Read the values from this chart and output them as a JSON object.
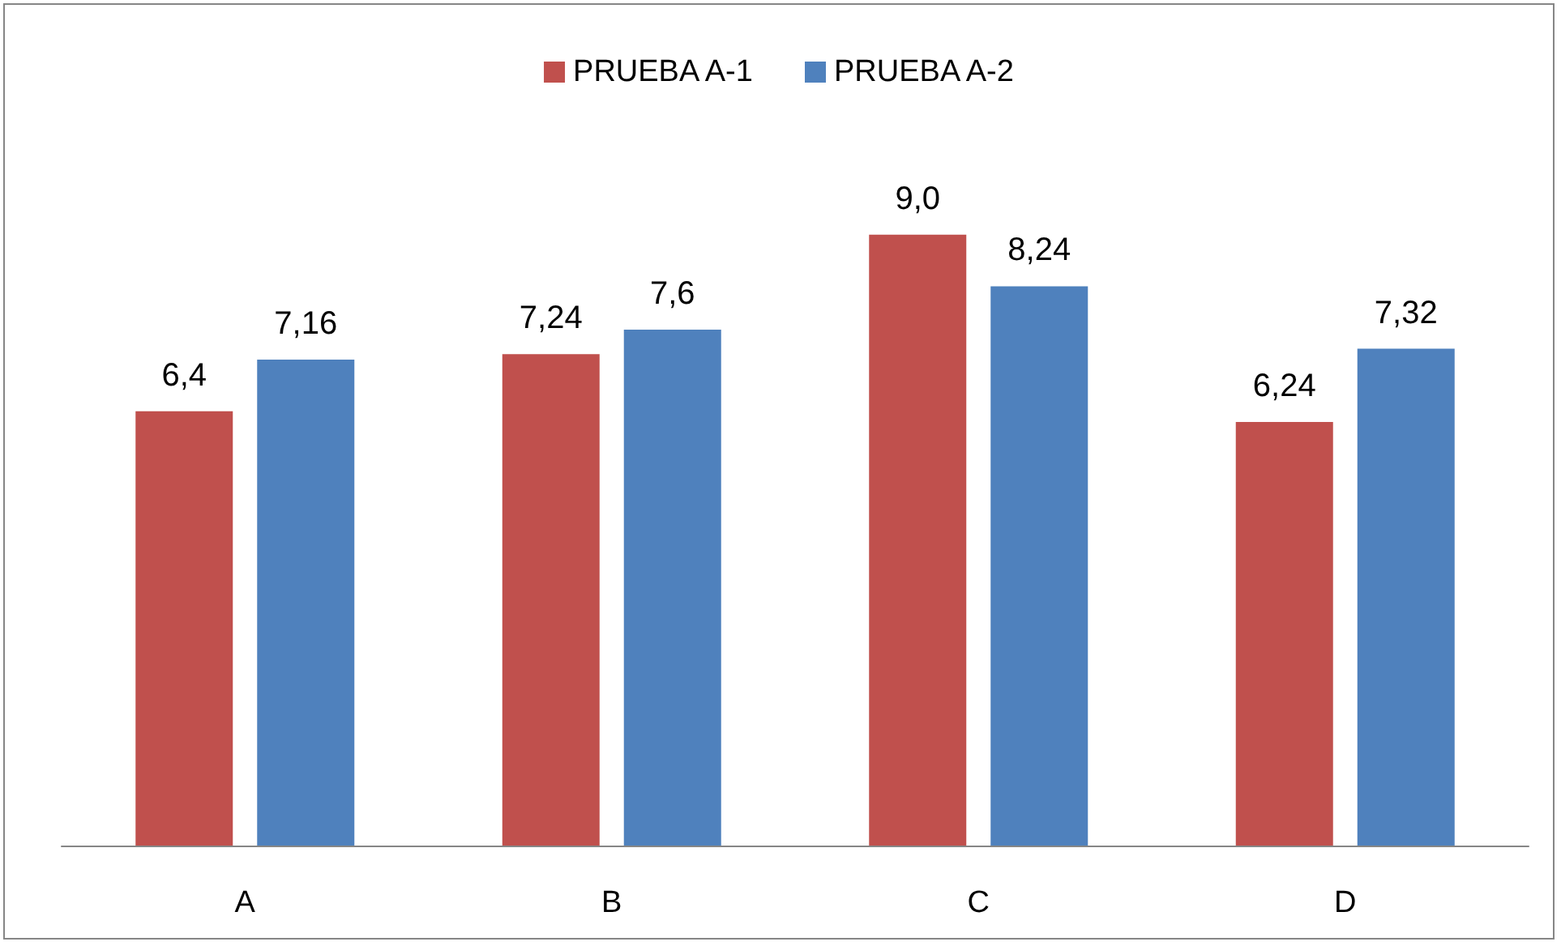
{
  "chart_data": {
    "type": "bar",
    "categories": [
      "A",
      "B",
      "C",
      "D"
    ],
    "series": [
      {
        "name": "PRUEBA A-1",
        "color": "#c0504d",
        "values": [
          6.4,
          7.24,
          9.0,
          6.24
        ],
        "value_labels": [
          "6,4",
          "7,24",
          "9,0",
          "6,24"
        ]
      },
      {
        "name": "PRUEBA A-2",
        "color": "#4f81bd",
        "values": [
          7.16,
          7.6,
          8.24,
          7.32
        ],
        "value_labels": [
          "7,16",
          "7,6",
          "8,24",
          "7,32"
        ]
      }
    ],
    "tick_labels": "x",
    "grid": false,
    "legend": "top"
  }
}
